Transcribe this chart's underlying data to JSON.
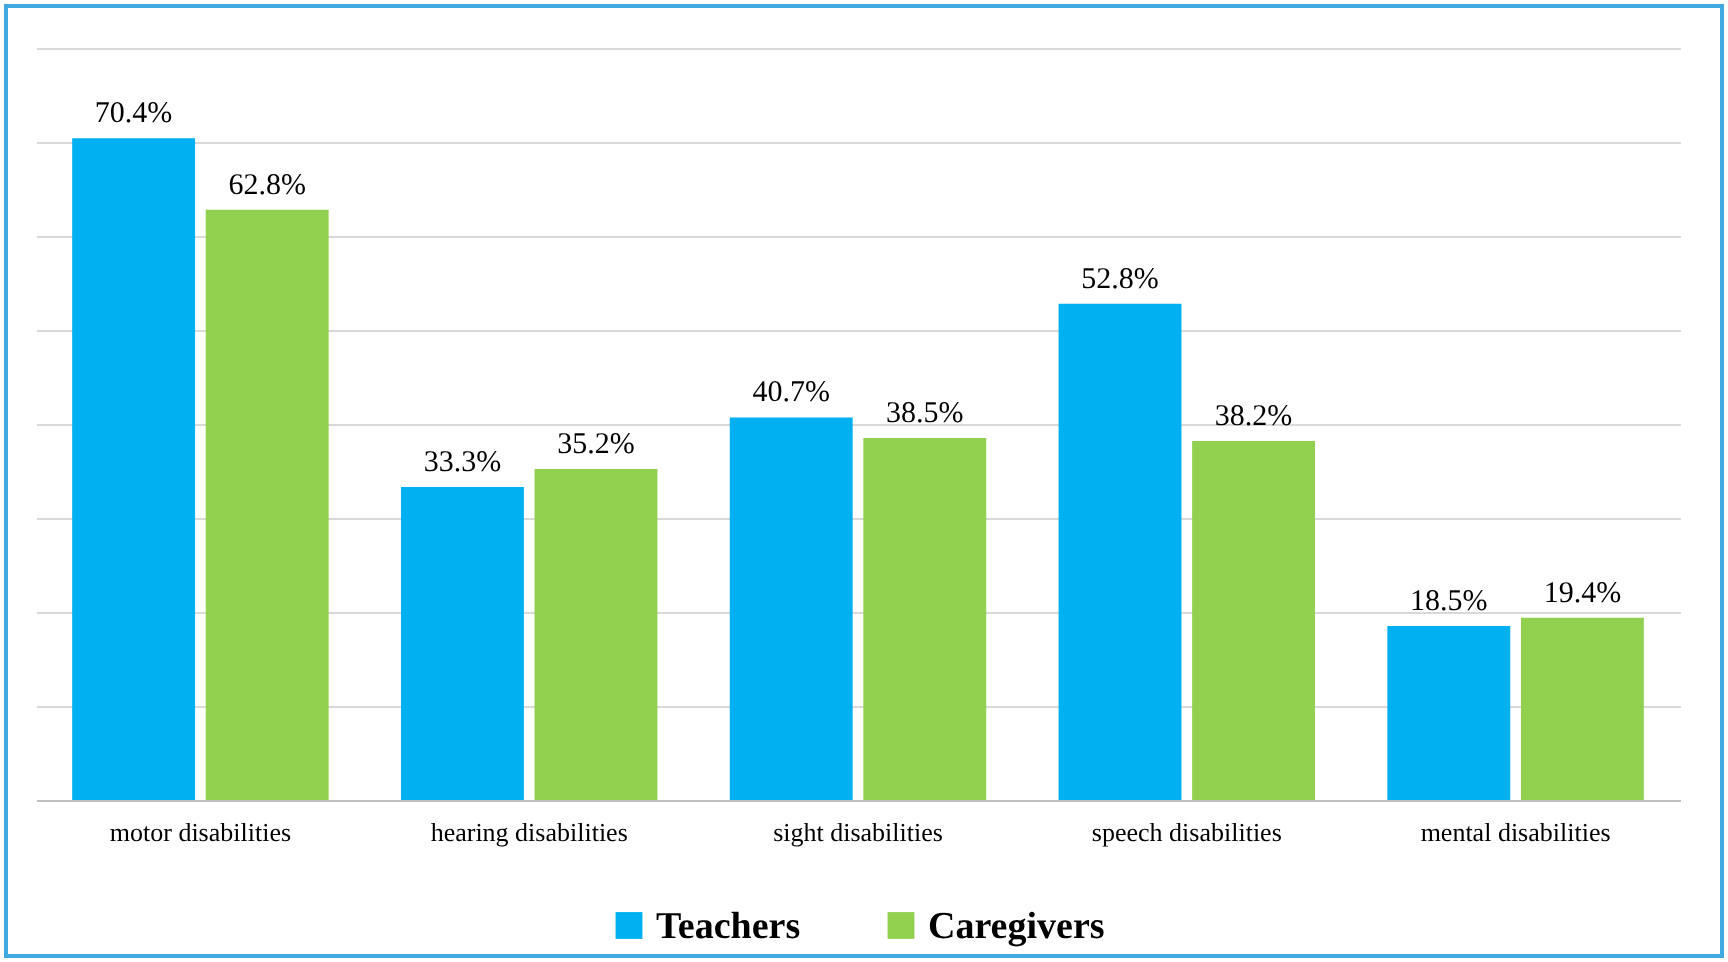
{
  "chart_data": {
    "type": "bar",
    "categories": [
      "motor disabilities",
      "hearing disabilities",
      "sight disabilities",
      "speech disabilities",
      "mental disabilities"
    ],
    "series": [
      {
        "name": "Teachers",
        "color": "#00b0f0",
        "values": [
          70.4,
          33.3,
          40.7,
          52.8,
          18.5
        ],
        "value_labels": [
          "70.4%",
          "33.3%",
          "40.7%",
          "52.8%",
          "18.5%"
        ]
      },
      {
        "name": "Caregivers",
        "color": "#92d050",
        "values": [
          62.8,
          35.2,
          38.5,
          38.2,
          19.4
        ],
        "value_labels": [
          "62.8%",
          "35.2%",
          "38.5%",
          "38.2%",
          "19.4%"
        ]
      }
    ],
    "ylim": [
      0,
      80
    ],
    "yticks": [
      {
        "value": 0,
        "label": null
      },
      {
        "value": 10,
        "label": null
      },
      {
        "value": 20,
        "label": null
      },
      {
        "value": 30,
        "label": null
      },
      {
        "value": 40,
        "label": null
      },
      {
        "value": 50,
        "label": null
      },
      {
        "value": 60,
        "label": null
      },
      {
        "value": 70,
        "label": null
      },
      {
        "value": 80,
        "label": null
      }
    ],
    "tick_labels": "x",
    "grid": "y",
    "legend": "bottom"
  }
}
